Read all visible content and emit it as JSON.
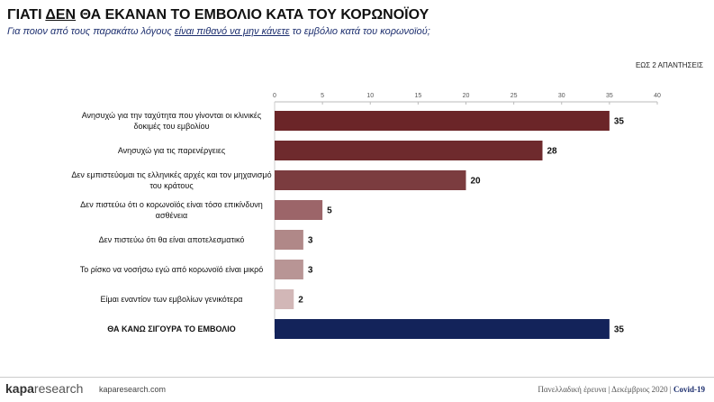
{
  "chart_data": {
    "type": "bar",
    "orientation": "horizontal",
    "title_parts": [
      "ΓΙΑΤΙ",
      "ΔΕΝ",
      "ΘΑ ΕΚΑΝΑΝ ΤΟ ΕΜΒΟΛΙΟ ΚΑΤΑ ΤΟΥ ΚΟΡΩΝΟΪΟΥ"
    ],
    "subtitle_parts": [
      "Για ποιον από τους παρακάτω λόγους",
      "είναι πιθανό να μην κάνετε",
      "το εμβόλιο κατά του κορωνοϊού;"
    ],
    "note": "ΕΩΣ 2 ΑΠΑΝΤΗΣΕΙΣ",
    "categories": [
      "Ανησυχώ για την ταχύτητα που γίνονται οι κλινικές δοκιμές του εμβολίου",
      "Ανησυχώ για τις παρενέργειες",
      "Δεν εμπιστεύομαι τις ελληνικές αρχές και τον μηχανισμό του κράτους",
      "Δεν πιστεύω ότι ο κορωνοϊός είναι τόσο επικίνδυνη ασθένεια",
      "Δεν πιστεύω ότι θα είναι αποτελεσματικό",
      "Το ρίσκο να νοσήσω εγώ από κορωνοϊό είναι μικρό",
      "Είμαι εναντίον των εμβολίων γενικότερα",
      "ΘΑ ΚΑΝΩ ΣΙΓΟΥΡΑ ΤΟ ΕΜΒΟΛΙΟ"
    ],
    "values": [
      35,
      28,
      20,
      5,
      3,
      3,
      2,
      35
    ],
    "colors": [
      "#6b2528",
      "#6e2a2d",
      "#7b3c3f",
      "#9c6569",
      "#b08888",
      "#b89595",
      "#d2b7b7",
      "#13235a"
    ],
    "xlim": [
      0,
      40
    ],
    "xticks": [
      0,
      5,
      10,
      15,
      20,
      25,
      30,
      35,
      40
    ]
  },
  "footer": {
    "logo": "kapa",
    "logo_suffix": "research",
    "site": "kaparesearch.com",
    "survey": "Πανελλαδική έρευνα | Δεκέμβριος 2020 |",
    "topic": "Covid-19"
  }
}
